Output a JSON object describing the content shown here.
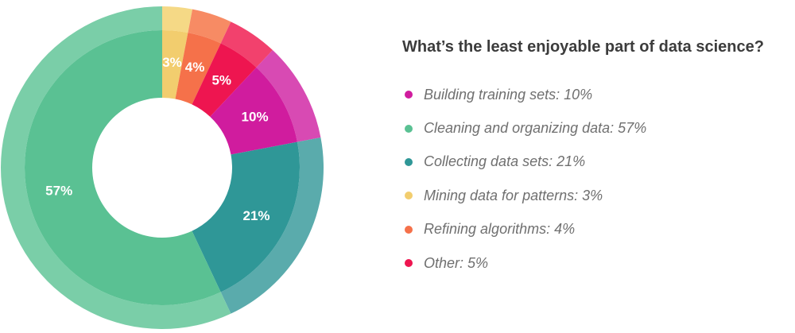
{
  "chart_data": {
    "type": "pie",
    "title": "What’s the least enjoyable part of data science?",
    "categories": [
      "Mining data for patterns",
      "Refining algorithms",
      "Other",
      "Building training sets",
      "Collecting data sets",
      "Cleaning and organizing data"
    ],
    "values": [
      3,
      4,
      5,
      10,
      21,
      57
    ],
    "slice_labels": [
      "3%",
      "4%",
      "5%",
      "10%",
      "21%",
      "57%"
    ],
    "colors": [
      "#f2cd6e",
      "#f5714a",
      "#ee1550",
      "#d01c9e",
      "#2f9797",
      "#5ac193"
    ],
    "outer_colors": [
      "#f5d986",
      "#f78b64",
      "#f2416d",
      "#d84ab3",
      "#5aabac",
      "#7acea8"
    ],
    "legend": {
      "position": "right",
      "entries": [
        {
          "label": "Building training sets: 10%",
          "color": "#d01c9e"
        },
        {
          "label": "Cleaning and organizing data: 57%",
          "color": "#5ac193"
        },
        {
          "label": "Collecting data sets: 21%",
          "color": "#2f9797"
        },
        {
          "label": "Mining data for patterns: 3%",
          "color": "#f2cd6e"
        },
        {
          "label": "Refining algorithms: 4%",
          "color": "#f5714a"
        },
        {
          "label": "Other: 5%",
          "color": "#ee1550"
        }
      ]
    }
  }
}
